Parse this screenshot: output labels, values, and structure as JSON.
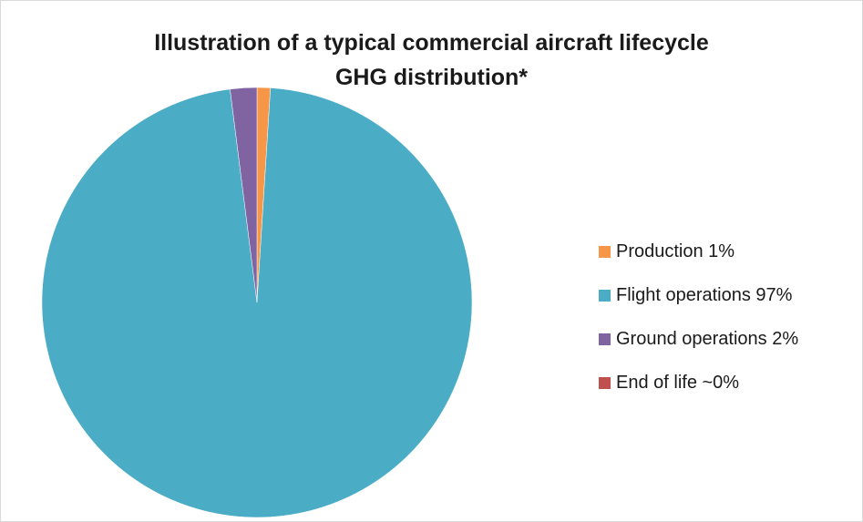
{
  "chart_data": {
    "type": "pie",
    "title_line1": "Illustration of a typical commercial aircraft lifecycle",
    "title_line2": "GHG distribution*",
    "slices": [
      {
        "label": "Production 1%",
        "value": 1,
        "color": "#f79646"
      },
      {
        "label": "Flight operations 97%",
        "value": 97,
        "color": "#4bacc6"
      },
      {
        "label": "Ground operations 2%",
        "value": 2,
        "color": "#8064a2"
      },
      {
        "label": "End of life ~0%",
        "value": 0,
        "color": "#c0504d"
      }
    ],
    "legend_position": "right"
  }
}
